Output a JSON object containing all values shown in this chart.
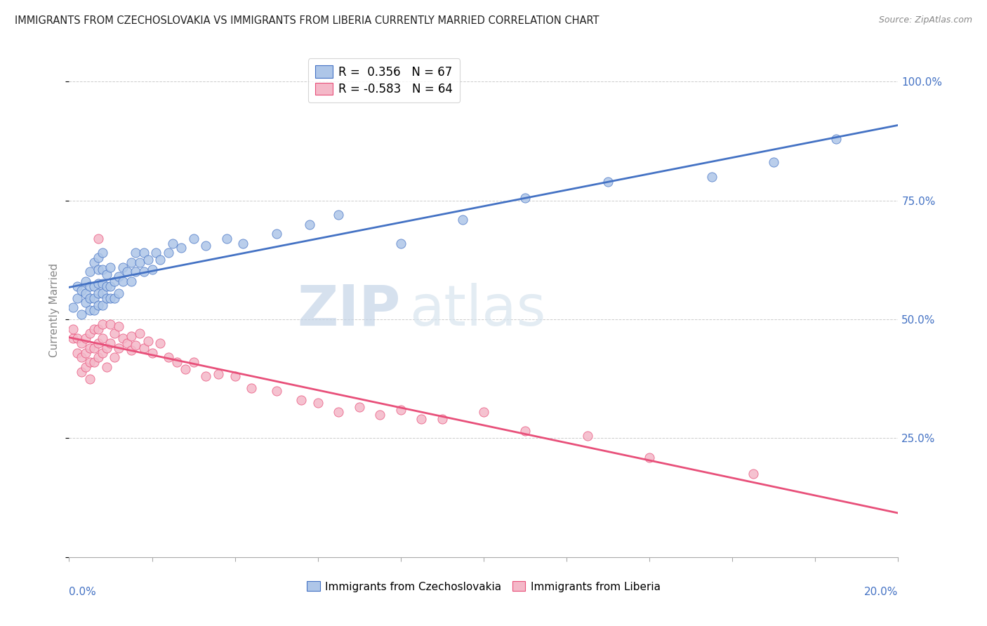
{
  "title": "IMMIGRANTS FROM CZECHOSLOVAKIA VS IMMIGRANTS FROM LIBERIA CURRENTLY MARRIED CORRELATION CHART",
  "source": "Source: ZipAtlas.com",
  "ylabel": "Currently Married",
  "legend1_label": "R =  0.356   N = 67",
  "legend2_label": "R = -0.583   N = 64",
  "legend1_color": "#aec6e8",
  "legend2_color": "#f4b8c8",
  "scatter1_color": "#aec6e8",
  "scatter2_color": "#f4b8c8",
  "line1_color": "#4472c4",
  "line2_color": "#e8507a",
  "watermark_zip": "ZIP",
  "watermark_atlas": "atlas",
  "watermark_color": "#d0dff0",
  "xmin": 0.0,
  "xmax": 0.2,
  "ymin": 0.0,
  "ymax": 1.04,
  "blue_points_x": [
    0.001,
    0.002,
    0.002,
    0.003,
    0.003,
    0.004,
    0.004,
    0.004,
    0.005,
    0.005,
    0.005,
    0.005,
    0.006,
    0.006,
    0.006,
    0.006,
    0.007,
    0.007,
    0.007,
    0.007,
    0.007,
    0.008,
    0.008,
    0.008,
    0.008,
    0.008,
    0.009,
    0.009,
    0.009,
    0.01,
    0.01,
    0.01,
    0.011,
    0.011,
    0.012,
    0.012,
    0.013,
    0.013,
    0.014,
    0.015,
    0.015,
    0.016,
    0.016,
    0.017,
    0.018,
    0.018,
    0.019,
    0.02,
    0.021,
    0.022,
    0.024,
    0.025,
    0.027,
    0.03,
    0.033,
    0.038,
    0.042,
    0.05,
    0.058,
    0.065,
    0.08,
    0.095,
    0.11,
    0.13,
    0.155,
    0.17,
    0.185
  ],
  "blue_points_y": [
    0.525,
    0.545,
    0.57,
    0.51,
    0.56,
    0.535,
    0.555,
    0.58,
    0.52,
    0.545,
    0.57,
    0.6,
    0.52,
    0.545,
    0.57,
    0.62,
    0.53,
    0.555,
    0.575,
    0.605,
    0.63,
    0.53,
    0.555,
    0.575,
    0.605,
    0.64,
    0.545,
    0.57,
    0.595,
    0.545,
    0.57,
    0.61,
    0.545,
    0.58,
    0.555,
    0.59,
    0.58,
    0.61,
    0.6,
    0.58,
    0.62,
    0.6,
    0.64,
    0.62,
    0.6,
    0.64,
    0.625,
    0.605,
    0.64,
    0.625,
    0.64,
    0.66,
    0.65,
    0.67,
    0.655,
    0.67,
    0.66,
    0.68,
    0.7,
    0.72,
    0.66,
    0.71,
    0.755,
    0.79,
    0.8,
    0.83,
    0.88
  ],
  "pink_points_x": [
    0.001,
    0.001,
    0.002,
    0.002,
    0.003,
    0.003,
    0.003,
    0.004,
    0.004,
    0.004,
    0.005,
    0.005,
    0.005,
    0.005,
    0.006,
    0.006,
    0.006,
    0.007,
    0.007,
    0.007,
    0.007,
    0.008,
    0.008,
    0.008,
    0.009,
    0.009,
    0.01,
    0.01,
    0.011,
    0.011,
    0.012,
    0.012,
    0.013,
    0.014,
    0.015,
    0.015,
    0.016,
    0.017,
    0.018,
    0.019,
    0.02,
    0.022,
    0.024,
    0.026,
    0.028,
    0.03,
    0.033,
    0.036,
    0.04,
    0.044,
    0.05,
    0.056,
    0.06,
    0.065,
    0.07,
    0.075,
    0.08,
    0.085,
    0.09,
    0.1,
    0.11,
    0.125,
    0.14,
    0.165
  ],
  "pink_points_y": [
    0.46,
    0.48,
    0.43,
    0.46,
    0.39,
    0.42,
    0.45,
    0.4,
    0.43,
    0.46,
    0.375,
    0.41,
    0.44,
    0.47,
    0.41,
    0.44,
    0.48,
    0.42,
    0.45,
    0.48,
    0.67,
    0.43,
    0.46,
    0.49,
    0.4,
    0.44,
    0.45,
    0.49,
    0.42,
    0.47,
    0.44,
    0.485,
    0.46,
    0.45,
    0.435,
    0.465,
    0.445,
    0.47,
    0.44,
    0.455,
    0.43,
    0.45,
    0.42,
    0.41,
    0.395,
    0.41,
    0.38,
    0.385,
    0.38,
    0.355,
    0.35,
    0.33,
    0.325,
    0.305,
    0.315,
    0.3,
    0.31,
    0.29,
    0.29,
    0.305,
    0.265,
    0.255,
    0.21,
    0.175
  ]
}
